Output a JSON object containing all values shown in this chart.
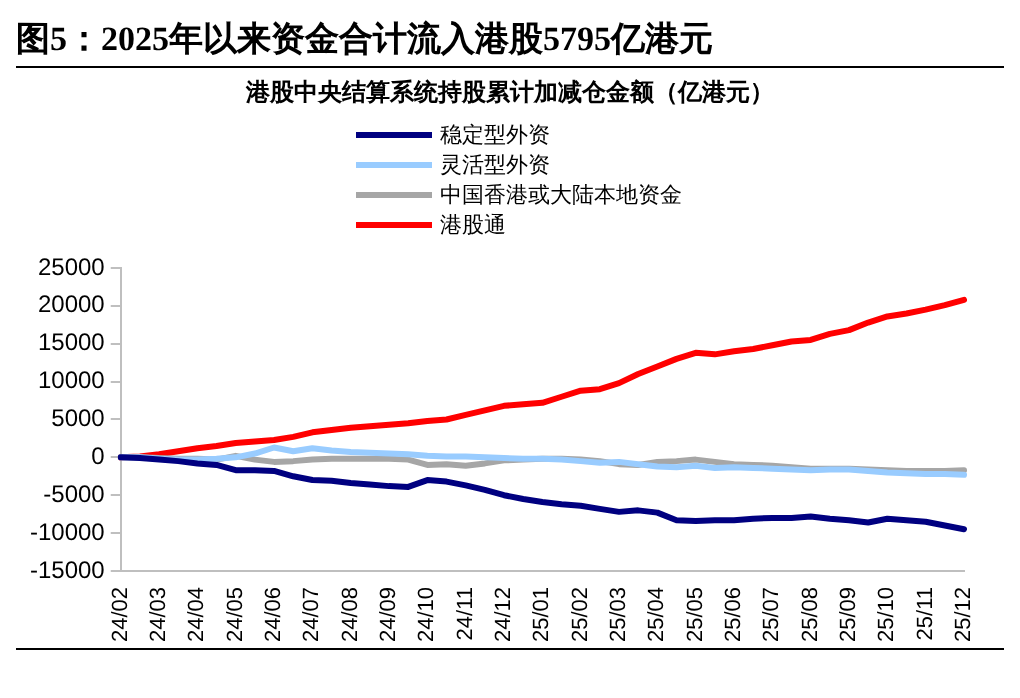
{
  "chart_data": {
    "type": "line",
    "title": "图5：2025年以来资金合计流入港股5795亿港元",
    "subtitle": "港股中央结算系统持股累计加减仓金额（亿港元）",
    "categories": [
      "24/02",
      null,
      "24/03",
      null,
      "24/04",
      null,
      "24/05",
      null,
      "24/06",
      null,
      "24/07",
      null,
      "24/08",
      null,
      "24/09",
      null,
      "24/10",
      null,
      "24/11",
      null,
      "24/12",
      null,
      "25/01",
      null,
      "25/02",
      null,
      "25/03",
      null,
      "25/04",
      null,
      "25/05",
      null,
      "25/06",
      null,
      "25/07",
      null,
      "25/08",
      null,
      "25/09",
      null,
      "25/10",
      null,
      "25/11",
      null,
      "25/12"
    ],
    "series": [
      {
        "name": "稳定型外资",
        "color": "#000080",
        "values": [
          0,
          -100,
          -300,
          -500,
          -800,
          -1000,
          -1700,
          -1700,
          -1800,
          -2500,
          -3000,
          -3100,
          -3400,
          -3600,
          -3800,
          -3900,
          -3000,
          -3200,
          -3700,
          -4300,
          -5000,
          -5500,
          -5900,
          -6200,
          -6400,
          -6800,
          -7200,
          -7000,
          -7300,
          -8300,
          -8400,
          -8300,
          -8300,
          -8100,
          -8000,
          -8000,
          -7800,
          -8100,
          -8300,
          -8600,
          -8100,
          -8300,
          -8500,
          -9000,
          -9500
        ]
      },
      {
        "name": "灵活型外资",
        "color": "#99ccff",
        "values": [
          0,
          0,
          -200,
          -300,
          -300,
          -200,
          0,
          500,
          1300,
          800,
          1200,
          900,
          700,
          600,
          500,
          400,
          200,
          100,
          100,
          0,
          -100,
          -200,
          -200,
          -300,
          -500,
          -700,
          -600,
          -900,
          -1200,
          -1300,
          -1100,
          -1400,
          -1300,
          -1400,
          -1500,
          -1600,
          -1700,
          -1600,
          -1600,
          -1800,
          -2000,
          -2100,
          -2200,
          -2200,
          -2300
        ]
      },
      {
        "name": "中国香港或大陆本地资金",
        "color": "#a6a6a6",
        "values": [
          0,
          0,
          -100,
          -200,
          -200,
          -300,
          200,
          -300,
          -600,
          -500,
          -300,
          -200,
          -200,
          -200,
          -200,
          -300,
          -1000,
          -900,
          -1100,
          -800,
          -400,
          -300,
          -200,
          -200,
          -300,
          -500,
          -900,
          -1000,
          -600,
          -500,
          -300,
          -600,
          -900,
          -1000,
          -1100,
          -1300,
          -1500,
          -1500,
          -1500,
          -1600,
          -1700,
          -1800,
          -1800,
          -1800,
          -1700
        ]
      },
      {
        "name": "港股通",
        "color": "#ff0000",
        "values": [
          0,
          100,
          400,
          800,
          1200,
          1500,
          1900,
          2100,
          2300,
          2700,
          3300,
          3600,
          3900,
          4100,
          4300,
          4500,
          4800,
          5000,
          5600,
          6200,
          6800,
          7000,
          7200,
          8000,
          8800,
          9000,
          9800,
          11000,
          12000,
          13000,
          13800,
          13600,
          14000,
          14300,
          14800,
          15300,
          15500,
          16300,
          16800,
          17800,
          18600,
          19000,
          19500,
          20100,
          20800
        ]
      }
    ],
    "ylim": [
      -15000,
      25000
    ],
    "yticks": [
      -15000,
      -10000,
      -5000,
      0,
      5000,
      10000,
      15000,
      20000,
      25000
    ],
    "grid": false,
    "legend": "top",
    "marker": "none",
    "line_style": "solid"
  }
}
